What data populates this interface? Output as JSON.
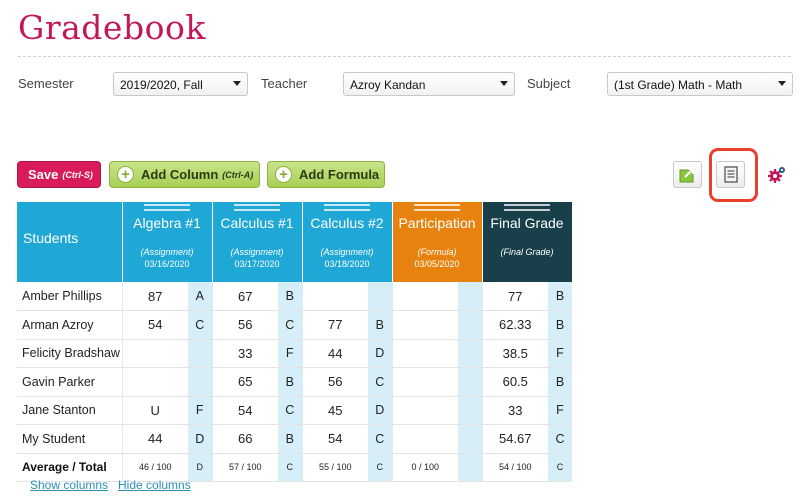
{
  "page": {
    "title": "Gradebook"
  },
  "filters": {
    "semester_label": "Semester",
    "semester_value": "2019/2020, Fall",
    "teacher_label": "Teacher",
    "teacher_value": "Azroy Kandan",
    "subject_label": "Subject",
    "subject_value": "(1st Grade) Math - Math"
  },
  "toolbar": {
    "save_label": "Save",
    "save_shortcut": "(Ctrl-S)",
    "add_column_label": "Add Column",
    "add_column_shortcut": "(Ctrl-A)",
    "add_formula_label": "Add Formula",
    "icons": [
      "export-icon",
      "document-icon",
      "settings-gear-icon"
    ]
  },
  "table": {
    "students_header": "Students",
    "columns": [
      {
        "name": "Algebra #1",
        "type": "(Assignment)",
        "date": "03/16/2020",
        "color": "#1fa7d6"
      },
      {
        "name": "Calculus #1",
        "type": "(Assignment)",
        "date": "03/17/2020",
        "color": "#1fa7d6"
      },
      {
        "name": "Calculus #2",
        "type": "(Assignment)",
        "date": "03/18/2020",
        "color": "#1fa7d6"
      },
      {
        "name": "Participation",
        "type": "(Formula)",
        "date": "03/05/2020",
        "color": "#e8820e"
      },
      {
        "name": "Final Grade",
        "type": "(Final Grade)",
        "date": "",
        "color": "#193f4b"
      }
    ],
    "rows": [
      {
        "name": "Amber Phillips",
        "cells": [
          [
            "87",
            "A"
          ],
          [
            "67",
            "B"
          ],
          [
            "",
            ""
          ],
          [
            "",
            ""
          ],
          [
            "77",
            "B"
          ]
        ]
      },
      {
        "name": "Arman Azroy",
        "cells": [
          [
            "54",
            "C"
          ],
          [
            "56",
            "C"
          ],
          [
            "77",
            "B"
          ],
          [
            "",
            ""
          ],
          [
            "62.33",
            "B"
          ]
        ]
      },
      {
        "name": "Felicity Bradshaw",
        "cells": [
          [
            "",
            ""
          ],
          [
            "33",
            "F"
          ],
          [
            "44",
            "D"
          ],
          [
            "",
            ""
          ],
          [
            "38.5",
            "F"
          ]
        ]
      },
      {
        "name": "Gavin Parker",
        "cells": [
          [
            "",
            ""
          ],
          [
            "65",
            "B"
          ],
          [
            "56",
            "C"
          ],
          [
            "",
            ""
          ],
          [
            "60.5",
            "B"
          ]
        ]
      },
      {
        "name": "Jane Stanton",
        "cells": [
          [
            "U",
            "F"
          ],
          [
            "54",
            "C"
          ],
          [
            "45",
            "D"
          ],
          [
            "",
            ""
          ],
          [
            "33",
            "F"
          ]
        ]
      },
      {
        "name": "My Student",
        "cells": [
          [
            "44",
            "D"
          ],
          [
            "66",
            "B"
          ],
          [
            "54",
            "C"
          ],
          [
            "",
            ""
          ],
          [
            "54.67",
            "C"
          ]
        ]
      }
    ],
    "average_row": {
      "name": "Average / Total",
      "cells": [
        [
          "46 / 100",
          "D"
        ],
        [
          "57 / 100",
          "C"
        ],
        [
          "55 / 100",
          "C"
        ],
        [
          "0 / 100",
          ""
        ],
        [
          "54 / 100",
          "C"
        ]
      ]
    }
  },
  "footer": {
    "show_columns": "Show columns",
    "hide_columns": "Hide columns"
  }
}
